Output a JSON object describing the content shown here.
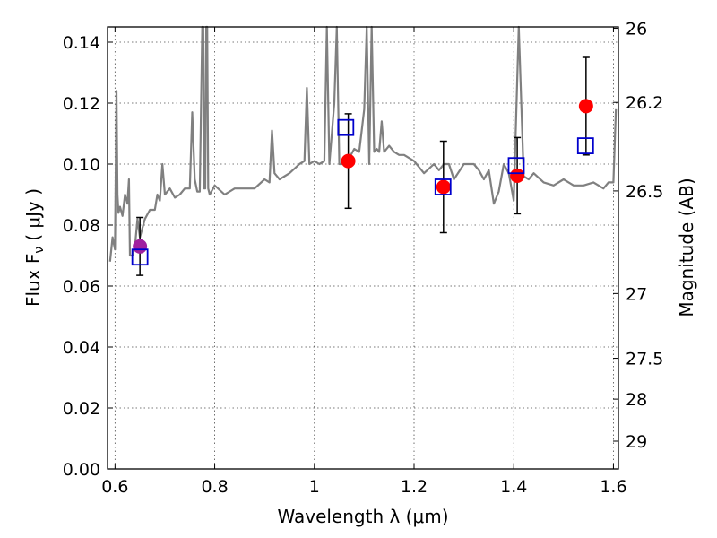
{
  "chart_data": {
    "type": "scatter",
    "xlabel": "Wavelength  λ (μm)",
    "ylabel": "Flux  F",
    "ylabel_sub": "ν",
    "ylabel_units": "( μJy )",
    "y2label": "Magnitude (AB)",
    "xlim": [
      0.585,
      1.61
    ],
    "ylim": [
      0.0,
      0.145
    ],
    "grid": true,
    "x_ticks": [
      {
        "value": 0.6,
        "label": "0.6"
      },
      {
        "value": 0.8,
        "label": "0.8"
      },
      {
        "value": 1.0,
        "label": "1"
      },
      {
        "value": 1.2,
        "label": "1.2"
      },
      {
        "value": 1.4,
        "label": "1.4"
      },
      {
        "value": 1.6,
        "label": "1.6"
      }
    ],
    "y_ticks": [
      {
        "value": 0.0,
        "label": "0.00"
      },
      {
        "value": 0.02,
        "label": "0.02"
      },
      {
        "value": 0.04,
        "label": "0.04"
      },
      {
        "value": 0.06,
        "label": "0.06"
      },
      {
        "value": 0.08,
        "label": "0.08"
      },
      {
        "value": 0.1,
        "label": "0.10"
      },
      {
        "value": 0.12,
        "label": "0.12"
      },
      {
        "value": 0.14,
        "label": "0.14"
      }
    ],
    "y2_ticks": [
      {
        "mag": 26.0,
        "label": "26"
      },
      {
        "mag": 26.2,
        "label": "26.2"
      },
      {
        "mag": 26.5,
        "label": "26.5"
      },
      {
        "mag": 27.0,
        "label": "27"
      },
      {
        "mag": 27.5,
        "label": "27.5"
      },
      {
        "mag": 28.0,
        "label": "28"
      },
      {
        "mag": 29.0,
        "label": "29"
      }
    ],
    "series": [
      {
        "kind": "line",
        "color": "#808080",
        "x": [
          0.59,
          0.595,
          0.6,
          0.603,
          0.605,
          0.607,
          0.61,
          0.615,
          0.62,
          0.625,
          0.628,
          0.63,
          0.635,
          0.64,
          0.645,
          0.65,
          0.66,
          0.67,
          0.68,
          0.685,
          0.69,
          0.695,
          0.7,
          0.71,
          0.72,
          0.73,
          0.74,
          0.75,
          0.755,
          0.76,
          0.765,
          0.77,
          0.775,
          0.777,
          0.779,
          0.781,
          0.783,
          0.785,
          0.787,
          0.79,
          0.8,
          0.82,
          0.84,
          0.86,
          0.88,
          0.9,
          0.91,
          0.915,
          0.92,
          0.925,
          0.93,
          0.95,
          0.97,
          0.98,
          0.985,
          0.99,
          1.0,
          1.01,
          1.02,
          1.025,
          1.03,
          1.04,
          1.045,
          1.05,
          1.06,
          1.07,
          1.08,
          1.09,
          1.1,
          1.105,
          1.11,
          1.115,
          1.12,
          1.125,
          1.13,
          1.135,
          1.14,
          1.15,
          1.16,
          1.17,
          1.18,
          1.2,
          1.22,
          1.24,
          1.25,
          1.26,
          1.27,
          1.28,
          1.3,
          1.32,
          1.33,
          1.34,
          1.35,
          1.36,
          1.37,
          1.38,
          1.39,
          1.4,
          1.41,
          1.42,
          1.43,
          1.44,
          1.46,
          1.48,
          1.5,
          1.52,
          1.54,
          1.56,
          1.57,
          1.58,
          1.59,
          1.6,
          1.605
        ],
        "y": [
          0.068,
          0.076,
          0.072,
          0.124,
          0.09,
          0.084,
          0.086,
          0.083,
          0.09,
          0.087,
          0.095,
          0.07,
          0.07,
          0.073,
          0.082,
          0.076,
          0.082,
          0.085,
          0.085,
          0.09,
          0.088,
          0.1,
          0.09,
          0.092,
          0.089,
          0.09,
          0.092,
          0.092,
          0.117,
          0.095,
          0.091,
          0.091,
          0.15,
          0.145,
          0.092,
          0.092,
          0.15,
          0.145,
          0.092,
          0.09,
          0.093,
          0.09,
          0.092,
          0.092,
          0.092,
          0.095,
          0.094,
          0.111,
          0.097,
          0.096,
          0.095,
          0.097,
          0.1,
          0.101,
          0.125,
          0.1,
          0.101,
          0.1,
          0.101,
          0.15,
          0.1,
          0.12,
          0.15,
          0.1,
          0.1,
          0.102,
          0.105,
          0.104,
          0.118,
          0.15,
          0.1,
          0.15,
          0.104,
          0.105,
          0.104,
          0.114,
          0.104,
          0.106,
          0.104,
          0.103,
          0.103,
          0.101,
          0.097,
          0.1,
          0.098,
          0.1,
          0.1,
          0.095,
          0.1,
          0.1,
          0.098,
          0.095,
          0.098,
          0.087,
          0.091,
          0.1,
          0.097,
          0.088,
          0.15,
          0.096,
          0.095,
          0.097,
          0.094,
          0.093,
          0.095,
          0.093,
          0.093,
          0.094,
          0.093,
          0.092,
          0.094,
          0.094,
          0.118
        ]
      },
      {
        "kind": "errorbar",
        "marker": "circle",
        "color": "#ff0000",
        "x": [
          1.068,
          1.259,
          1.407,
          1.545
        ],
        "y": [
          0.101,
          0.0925,
          0.0962,
          0.119
        ],
        "yerr": [
          0.0155,
          0.015,
          0.0125,
          0.016
        ]
      },
      {
        "kind": "errorbar",
        "marker": "circle",
        "color": "#a020a0",
        "x": [
          0.65
        ],
        "y": [
          0.073
        ],
        "yerr": [
          0.0095
        ]
      },
      {
        "kind": "scatter",
        "marker": "square",
        "color": "#0000cc",
        "x": [
          0.65,
          1.063,
          1.258,
          1.405,
          1.544
        ],
        "y": [
          0.0695,
          0.112,
          0.0925,
          0.0995,
          0.106
        ]
      }
    ]
  }
}
